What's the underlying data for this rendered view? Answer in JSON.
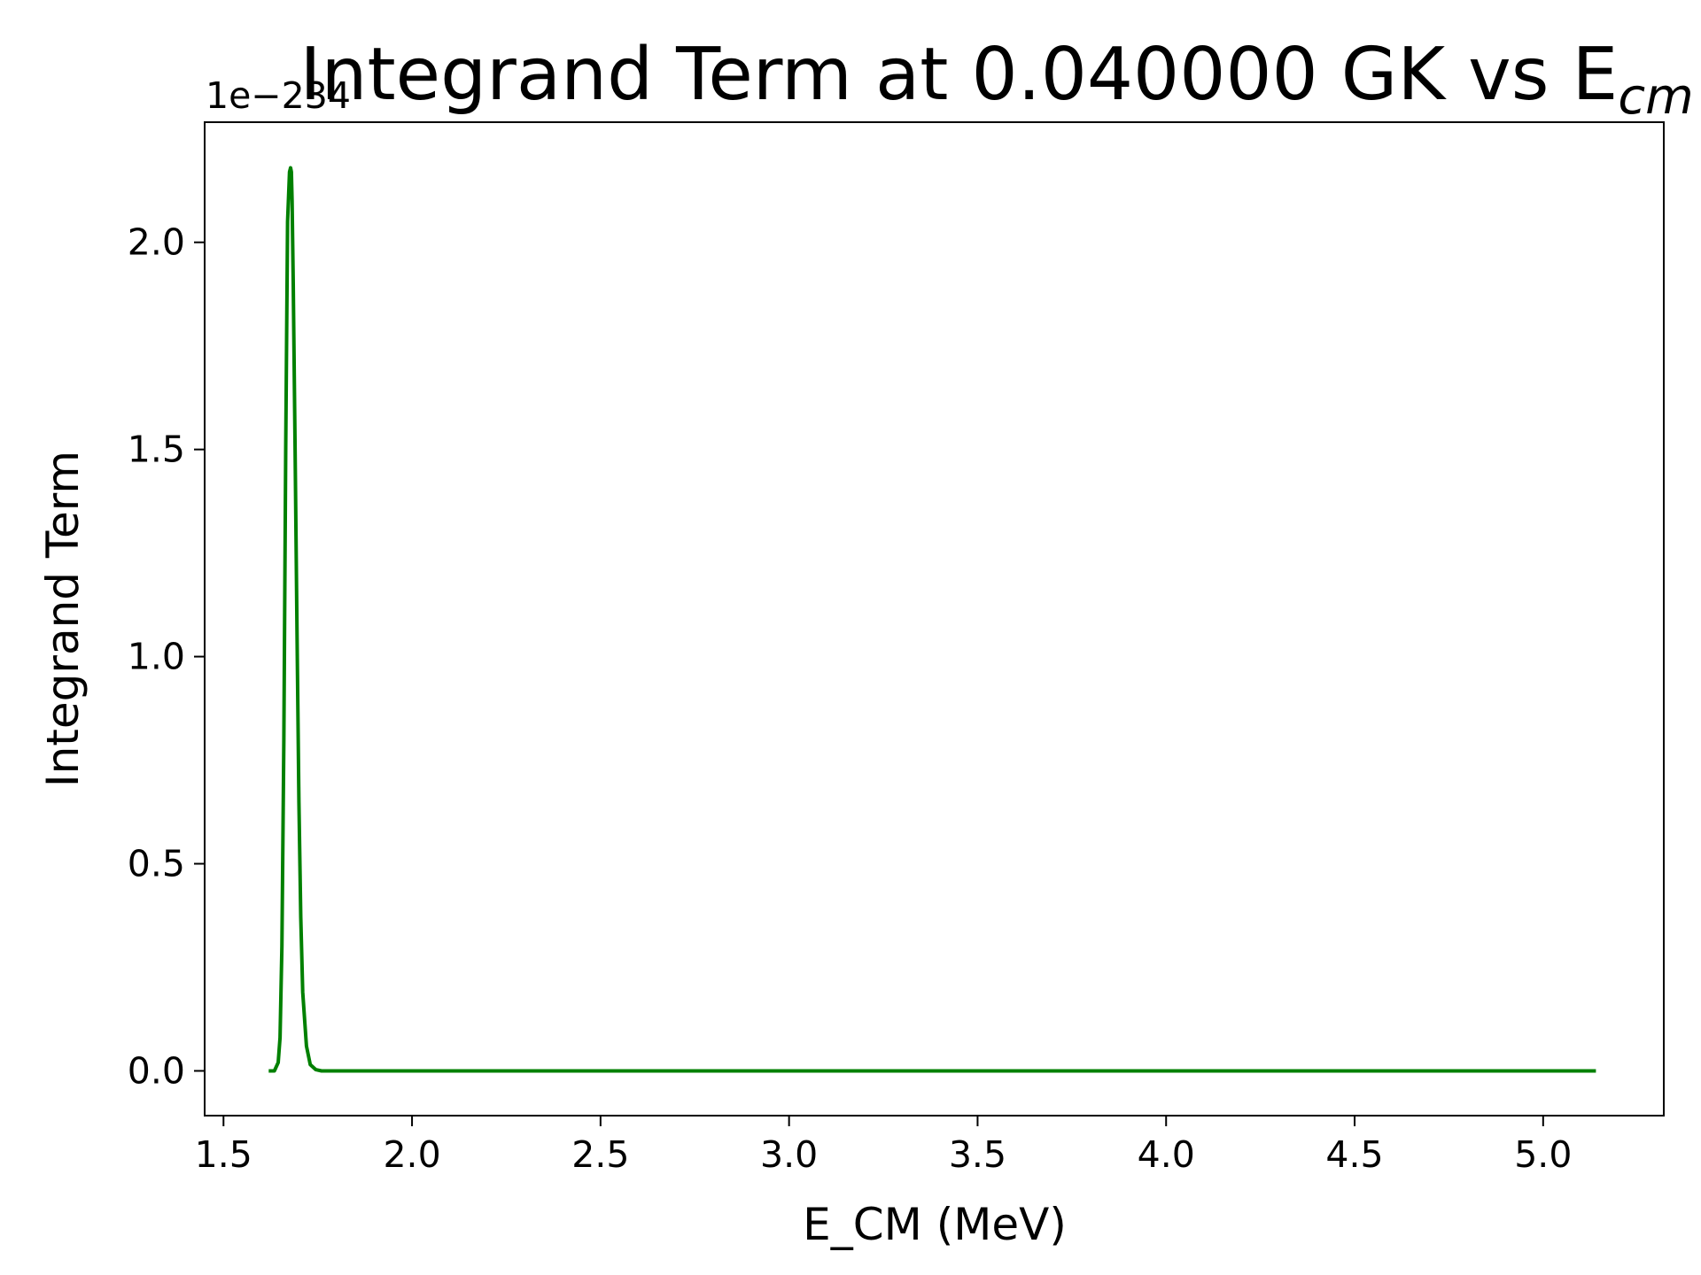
{
  "chart_data": {
    "type": "line",
    "title": "Integrand Term at 0.040000 GK vs E",
    "title_subscript": "cm",
    "xlabel": "E_CM (MeV)",
    "ylabel": "Integrand Term",
    "y_offset_label": "1e−234",
    "xlim": [
      1.45,
      5.32
    ],
    "ylim": [
      -0.108,
      2.29
    ],
    "x_ticks": [
      1.5,
      2.0,
      2.5,
      3.0,
      3.5,
      4.0,
      4.5,
      5.0
    ],
    "x_tick_labels": [
      "1.5",
      "2.0",
      "2.5",
      "3.0",
      "3.5",
      "4.0",
      "4.5",
      "5.0"
    ],
    "y_ticks": [
      0.0,
      0.5,
      1.0,
      1.5,
      2.0
    ],
    "y_tick_labels": [
      "0.0",
      "0.5",
      "1.0",
      "1.5",
      "2.0"
    ],
    "grid": false,
    "series": [
      {
        "color": "#008000",
        "x": [
          1.62,
          1.635,
          1.645,
          1.65,
          1.655,
          1.66,
          1.665,
          1.67,
          1.675,
          1.678,
          1.68,
          1.682,
          1.685,
          1.69,
          1.695,
          1.7,
          1.705,
          1.71,
          1.72,
          1.73,
          1.745,
          1.76,
          1.8,
          2.0,
          2.5,
          3.0,
          3.5,
          4.0,
          4.5,
          5.14
        ],
        "y": [
          0.0,
          0.0,
          0.02,
          0.08,
          0.3,
          0.8,
          1.5,
          2.05,
          2.17,
          2.18,
          2.17,
          2.1,
          1.9,
          1.5,
          1.05,
          0.65,
          0.37,
          0.19,
          0.06,
          0.015,
          0.003,
          0.0,
          0.0,
          0.0,
          0.0,
          0.0,
          0.0,
          0.0,
          0.0,
          0.0
        ]
      }
    ]
  }
}
